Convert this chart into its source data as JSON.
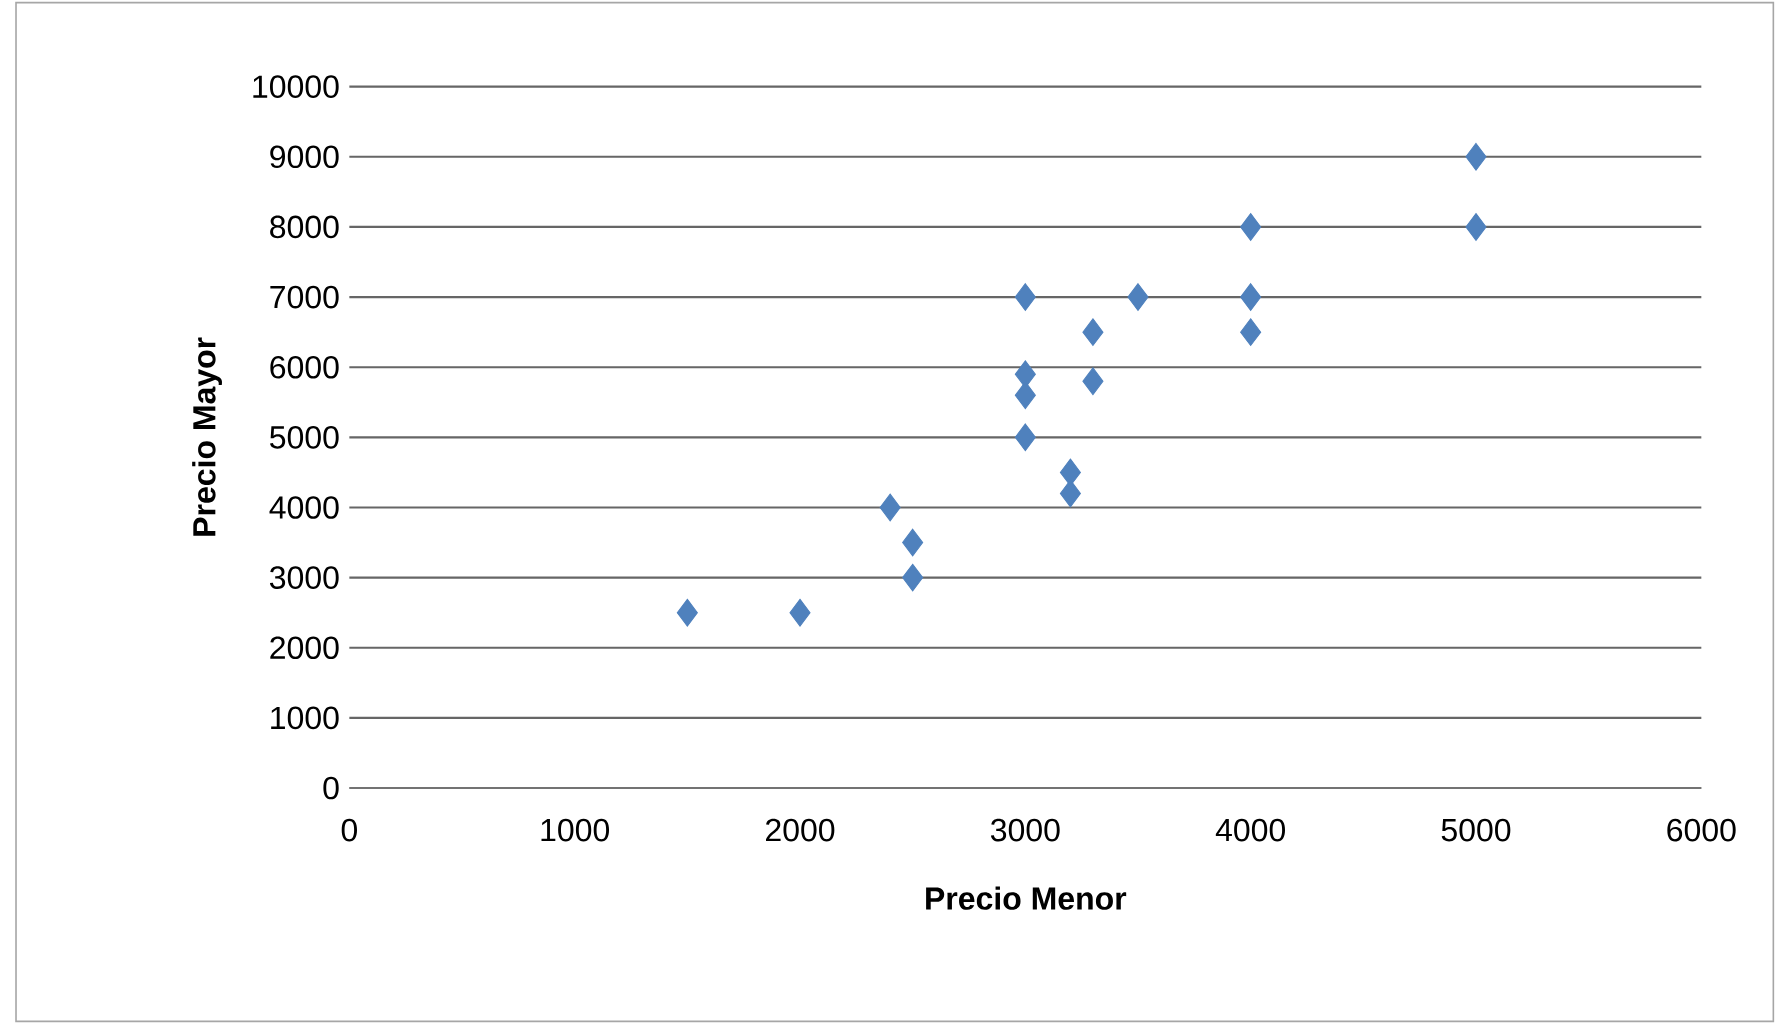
{
  "chart_data": {
    "type": "scatter",
    "xlabel": "Precio Menor",
    "ylabel": "Precio Mayor",
    "x": [
      1500,
      2000,
      2400,
      2500,
      2500,
      3000,
      3000,
      3000,
      3000,
      3200,
      3200,
      3300,
      3300,
      3500,
      4000,
      4000,
      4000,
      5000,
      5000
    ],
    "series": [
      {
        "color": "#4f81bd",
        "values": [
          2500,
          2500,
          4000,
          3500,
          3000,
          7000,
          5900,
          5600,
          5000,
          4500,
          4200,
          6500,
          5800,
          7000,
          8000,
          7000,
          6500,
          9000,
          8000
        ]
      }
    ],
    "xlim": [
      0,
      6000
    ],
    "xticks": [
      0,
      1000,
      2000,
      3000,
      4000,
      5000,
      6000
    ],
    "ylim": [
      0,
      10000
    ],
    "yticks": [
      0,
      1000,
      2000,
      3000,
      4000,
      5000,
      6000,
      7000,
      8000,
      9000,
      10000
    ],
    "grid": "y",
    "marker": "diamond"
  }
}
